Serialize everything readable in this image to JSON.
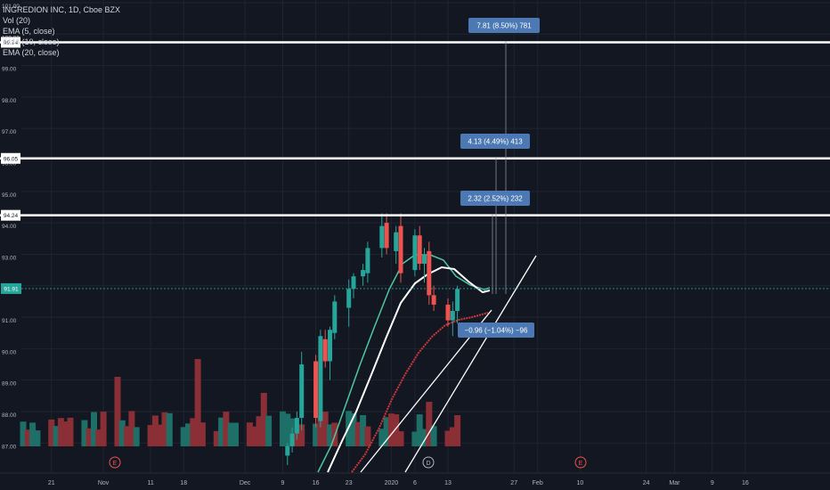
{
  "legend": {
    "title": "INGREDION INC, 1D, Cboe BZX",
    "vol": "Vol (20)",
    "ema1": "EMA (5, close)",
    "ema2": "EMA (10, close)",
    "ema3": "EMA (20, close)"
  },
  "colors": {
    "background": "#131722",
    "grid": "#1f2430",
    "up": "#26a69a",
    "down": "#ef5350",
    "vol_up": "#1e6f67",
    "vol_down": "#8b2f36",
    "ema5": "#4fc7a0",
    "ema10": "#ffffff",
    "ema20": "#d13838",
    "label_box": "#4c79b3",
    "last_price_line": "#26a69a"
  },
  "chart_data": {
    "type": "candlestick",
    "ylim": [
      86.3,
      101.0
    ],
    "y_ticks": [
      "101.00",
      "100.00",
      "99.00",
      "98.00",
      "97.00",
      "96.00",
      "95.00",
      "94.00",
      "93.00",
      "92.00",
      "91.00",
      "90.00",
      "89.00",
      "88.00",
      "87.00"
    ],
    "x_ticks": [
      "21",
      "Nov",
      "11",
      "18",
      "Dec",
      "9",
      "16",
      "23",
      "2020",
      "6",
      "13",
      "27",
      "Feb",
      "10",
      "24",
      "Mar",
      "9",
      "16"
    ],
    "candles": [
      {
        "d": "2019-12-10",
        "o": 86.6,
        "h": 87.0,
        "l": 86.3,
        "c": 86.9
      },
      {
        "d": "2019-12-11",
        "o": 86.9,
        "h": 87.5,
        "l": 86.7,
        "c": 87.3
      },
      {
        "d": "2019-12-12",
        "o": 87.3,
        "h": 88.0,
        "l": 87.1,
        "c": 87.8
      },
      {
        "d": "2019-12-13",
        "o": 87.8,
        "h": 89.9,
        "l": 87.4,
        "c": 89.5
      },
      {
        "d": "2019-12-16",
        "o": 89.6,
        "h": 89.8,
        "l": 87.5,
        "c": 87.8
      },
      {
        "d": "2019-12-17",
        "o": 87.7,
        "h": 90.6,
        "l": 87.5,
        "c": 90.4
      },
      {
        "d": "2019-12-18",
        "o": 90.3,
        "h": 90.6,
        "l": 89.4,
        "c": 89.6
      },
      {
        "d": "2019-12-19",
        "o": 89.6,
        "h": 90.7,
        "l": 89.0,
        "c": 90.6
      },
      {
        "d": "2019-12-20",
        "o": 90.5,
        "h": 91.7,
        "l": 90.3,
        "c": 91.5
      },
      {
        "d": "2019-12-23",
        "o": 91.3,
        "h": 92.2,
        "l": 90.7,
        "c": 91.9
      },
      {
        "d": "2019-12-24",
        "o": 91.9,
        "h": 92.4,
        "l": 91.6,
        "c": 92.3
      },
      {
        "d": "2019-12-26",
        "o": 92.3,
        "h": 92.7,
        "l": 92.0,
        "c": 92.5
      },
      {
        "d": "2019-12-27",
        "o": 92.4,
        "h": 93.4,
        "l": 92.1,
        "c": 93.2
      },
      {
        "d": "2019-12-30",
        "o": 93.2,
        "h": 94.3,
        "l": 92.9,
        "c": 93.9
      },
      {
        "d": "2019-12-31",
        "o": 94.0,
        "h": 94.3,
        "l": 93.0,
        "c": 93.2
      },
      {
        "d": "2020-01-02",
        "o": 93.1,
        "h": 93.9,
        "l": 92.7,
        "c": 93.7
      },
      {
        "d": "2020-01-03",
        "o": 93.9,
        "h": 94.3,
        "l": 92.1,
        "c": 92.4
      },
      {
        "d": "2020-01-06",
        "o": 92.5,
        "h": 93.8,
        "l": 92.3,
        "c": 93.6
      },
      {
        "d": "2020-01-07",
        "o": 93.6,
        "h": 93.9,
        "l": 92.5,
        "c": 92.7
      },
      {
        "d": "2020-01-08",
        "o": 92.7,
        "h": 93.2,
        "l": 92.1,
        "c": 93.0
      },
      {
        "d": "2020-01-09",
        "o": 93.1,
        "h": 93.4,
        "l": 91.4,
        "c": 91.7
      },
      {
        "d": "2020-01-10",
        "o": 91.7,
        "h": 92.0,
        "l": 91.2,
        "c": 91.4
      },
      {
        "d": "2020-01-13",
        "o": 91.4,
        "h": 91.6,
        "l": 90.7,
        "c": 90.9
      },
      {
        "d": "2020-01-14",
        "o": 90.9,
        "h": 91.5,
        "l": 90.4,
        "c": 91.2
      },
      {
        "d": "2020-01-15",
        "o": 91.2,
        "h": 92.0,
        "l": 90.8,
        "c": 91.9
      }
    ],
    "volume_histogram": "approximate daily volume bars shown in lower pane",
    "price_lines": [
      {
        "label": "99.74",
        "value": 99.74
      },
      {
        "label": "96.05",
        "value": 96.05
      },
      {
        "label": "94.24",
        "value": 94.24
      }
    ],
    "last_price": {
      "label": "91.91",
      "value": 91.91
    },
    "measure_labels": [
      {
        "text": "7.81 (8.50%) 781"
      },
      {
        "text": "4.13 (4.49%) 413"
      },
      {
        "text": "2.32 (2.52%) 232"
      },
      {
        "text": "−0.96 (−1.04%) −96"
      }
    ],
    "event_markers": [
      {
        "symbol": "E",
        "type": "earnings"
      },
      {
        "symbol": "D",
        "type": "dividend"
      },
      {
        "symbol": "E",
        "type": "earnings-upcoming"
      }
    ]
  }
}
